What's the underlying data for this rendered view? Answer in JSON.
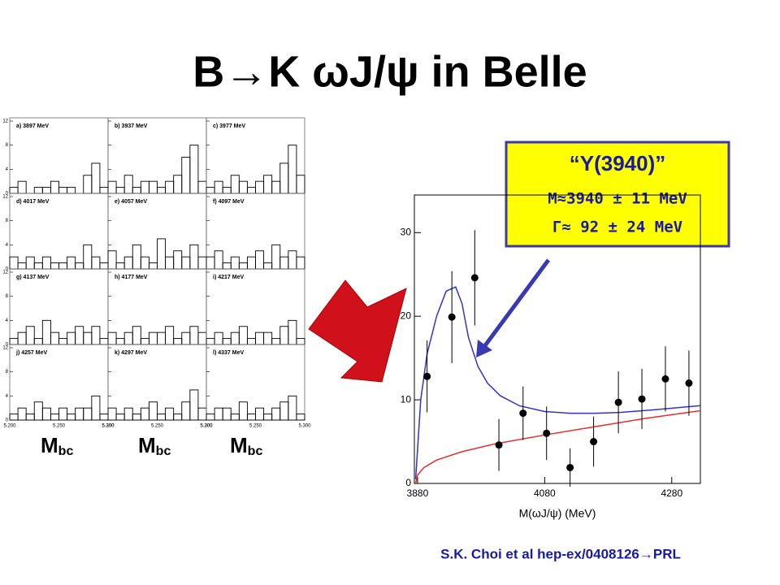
{
  "title": "B→K ωJ/ψ in Belle",
  "panels": {
    "ylim": [
      0,
      12
    ],
    "yticks": [
      0,
      4,
      8,
      12
    ],
    "xlim": [
      5.2,
      5.3
    ],
    "xticks": [
      {
        "value": 5.2,
        "label": "5.200"
      },
      {
        "value": 5.25,
        "label": "5.250"
      },
      {
        "value": 5.3,
        "label": "5.300"
      }
    ],
    "items": [
      {
        "label": "a) 3897 MeV",
        "values": [
          1,
          2,
          0,
          1,
          1,
          2,
          1,
          1,
          0,
          3,
          5,
          1
        ]
      },
      {
        "label": "b) 3937 MeV",
        "values": [
          2,
          1,
          3,
          1,
          2,
          2,
          1,
          2,
          3,
          6,
          8,
          2
        ]
      },
      {
        "label": "c) 3977 MeV",
        "values": [
          1,
          2,
          1,
          3,
          2,
          1,
          2,
          3,
          2,
          5,
          8,
          3
        ]
      },
      {
        "label": "d) 4017 MeV",
        "values": [
          2,
          1,
          2,
          1,
          2,
          1,
          1,
          2,
          1,
          4,
          2,
          1
        ]
      },
      {
        "label": "e) 4057 MeV",
        "values": [
          3,
          1,
          2,
          4,
          2,
          1,
          5,
          2,
          3,
          2,
          4,
          2
        ]
      },
      {
        "label": "f) 4097 MeV",
        "values": [
          2,
          3,
          1,
          2,
          1,
          2,
          3,
          1,
          4,
          2,
          3,
          2
        ]
      },
      {
        "label": "g) 4137 MeV",
        "values": [
          1,
          2,
          3,
          1,
          4,
          2,
          1,
          2,
          3,
          2,
          3,
          1
        ]
      },
      {
        "label": "h) 4177 MeV",
        "values": [
          2,
          1,
          2,
          3,
          1,
          2,
          2,
          3,
          1,
          2,
          3,
          2
        ]
      },
      {
        "label": "i) 4217 MeV",
        "values": [
          1,
          2,
          1,
          2,
          3,
          1,
          2,
          2,
          1,
          3,
          4,
          1
        ]
      },
      {
        "label": "j) 4257 MeV",
        "values": [
          1,
          2,
          1,
          3,
          2,
          1,
          2,
          1,
          2,
          2,
          4,
          1
        ]
      },
      {
        "label": "k) 4297 MeV",
        "values": [
          2,
          1,
          2,
          1,
          2,
          3,
          1,
          2,
          1,
          3,
          5,
          2
        ]
      },
      {
        "label": "l) 4337 MeV",
        "values": [
          1,
          2,
          2,
          1,
          3,
          1,
          2,
          1,
          2,
          3,
          4,
          1
        ]
      }
    ]
  },
  "mbc_label": {
    "main": "M",
    "sub": "bc"
  },
  "chart_data": {
    "type": "scatter",
    "xlabel": "M(ωJ/ψ) (MeV)",
    "xlim": [
      3875,
      4325
    ],
    "xticks": [
      3880,
      4080,
      4280
    ],
    "ylim": [
      0,
      34.5
    ],
    "yticks": [
      0,
      10,
      20,
      30
    ],
    "points": {
      "color": "#000000",
      "x": [
        3895,
        3934,
        3970,
        4008,
        4046,
        4083,
        4120,
        4157,
        4196,
        4233,
        4270,
        4307
      ],
      "values": [
        12.8,
        19.9,
        24.6,
        4.6,
        8.4,
        6.0,
        1.9,
        5.0,
        9.7,
        10.1,
        12.5,
        12.0
      ],
      "errors": [
        4.3,
        5.5,
        5.7,
        3.1,
        3.2,
        3.2,
        2.3,
        3.0,
        3.7,
        3.6,
        3.9,
        3.9
      ]
    },
    "curves": [
      {
        "color": "#3333cc",
        "x": [
          3877,
          3885,
          3895,
          3910,
          3925,
          3940,
          3950,
          3960,
          3975,
          3990,
          4010,
          4040,
          4080,
          4120,
          4160,
          4200,
          4250,
          4325
        ],
        "values": [
          0.5,
          10,
          15.5,
          20,
          23,
          23.5,
          21.5,
          17.5,
          14,
          12,
          10.5,
          9.3,
          8.6,
          8.4,
          8.4,
          8.5,
          8.8,
          9.3
        ]
      },
      {
        "color": "#e03030",
        "x": [
          3877,
          3880,
          3890,
          3910,
          3950,
          4000,
          4080,
          4160,
          4240,
          4325
        ],
        "values": [
          0,
          1.0,
          1.9,
          2.8,
          3.8,
          4.7,
          5.8,
          6.8,
          7.8,
          8.7
        ]
      }
    ]
  },
  "annotation": {
    "name": "“Y(3940)”",
    "mass": "M≈3940 ± 11 MeV",
    "width": "Γ≈ 92 ± 24 MeV"
  },
  "citation": "S.K. Choi et al hep-ex/0408126→PRL"
}
